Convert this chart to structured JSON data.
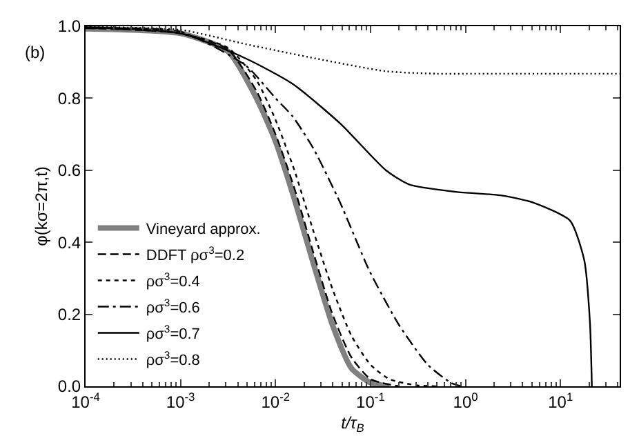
{
  "chart_data": {
    "type": "line",
    "xlabel": "t/τ$_{B}$",
    "ylabel": "φ(kσ=2π,t)",
    "annotations": [
      "(b)"
    ],
    "log": "x",
    "xlim": [
      0.0001,
      42
    ],
    "ylim": [
      0,
      1
    ],
    "xticks": [
      {
        "value": 0.0001,
        "label": "10$^{-4}$"
      },
      {
        "value": 0.001,
        "label": "10$^{-3}$"
      },
      {
        "value": 0.01,
        "label": "10$^{-2}$"
      },
      {
        "value": 0.1,
        "label": "10$^{-1}$"
      },
      {
        "value": 1,
        "label": "10$^{0}$"
      },
      {
        "value": 10,
        "label": "10$^{1}$"
      }
    ],
    "yticks": [
      {
        "value": 0,
        "label": "0.0"
      },
      0.2,
      0.4,
      0.6,
      0.8,
      {
        "value": 1,
        "label": "1.0"
      }
    ],
    "legend": "bottom left",
    "marker": "none",
    "series": [
      {
        "name": "Vineyard approx.",
        "color": "#808080",
        "line_style": "solid",
        "x": [
          0.0001,
          0.001,
          0.00316,
          0.0063,
          0.01,
          0.0158,
          0.0251,
          0.0398,
          0.0631,
          0.1,
          0.158
        ],
        "values": [
          0.993,
          0.98,
          0.93,
          0.8,
          0.68,
          0.52,
          0.34,
          0.17,
          0.05,
          0.01,
          0
        ]
      },
      {
        "name": "DDFT ρσ$^{3}$=0.2",
        "color": "#000000",
        "line_style": "dashed",
        "x": [
          0.0001,
          0.001,
          0.00316,
          0.0063,
          0.01,
          0.0158,
          0.0251,
          0.0398,
          0.0631,
          0.1,
          0.2
        ],
        "values": [
          0.995,
          0.98,
          0.935,
          0.82,
          0.7,
          0.55,
          0.37,
          0.2,
          0.08,
          0.02,
          0
        ]
      },
      {
        "name": "ρσ$^{3}$=0.4",
        "color": "#000000",
        "line_style": "shortdash",
        "x": [
          0.0001,
          0.001,
          0.00316,
          0.0063,
          0.01,
          0.0158,
          0.0251,
          0.0398,
          0.0631,
          0.1,
          0.158,
          0.3,
          0.5
        ],
        "values": [
          0.996,
          0.98,
          0.94,
          0.85,
          0.74,
          0.6,
          0.43,
          0.27,
          0.14,
          0.06,
          0.02,
          0.003,
          0
        ]
      },
      {
        "name": "ρσ$^{3}$=0.6",
        "color": "#000000",
        "line_style": "dashdot",
        "x": [
          0.0001,
          0.001,
          0.0049,
          0.01,
          0.0151,
          0.0251,
          0.0479,
          0.0977,
          0.2,
          0.4,
          0.7,
          0.9
        ],
        "values": [
          0.994,
          0.985,
          0.89,
          0.8,
          0.75,
          0.66,
          0.51,
          0.32,
          0.17,
          0.06,
          0.01,
          0
        ]
      },
      {
        "name": "ρσ$^{3}$=0.7",
        "color": "#000000",
        "line_style": "solid",
        "x": [
          0.0001,
          0.001,
          0.0049,
          0.0151,
          0.0479,
          0.145,
          0.257,
          0.794,
          2.4,
          5.2,
          12.6,
          17.8,
          20.4,
          21.4
        ],
        "values": [
          0.997,
          0.98,
          0.91,
          0.84,
          0.73,
          0.6,
          0.56,
          0.54,
          0.53,
          0.51,
          0.46,
          0.35,
          0.18,
          0
        ]
      },
      {
        "name": "ρσ$^{3}$=0.8",
        "color": "#000000",
        "line_style": "dotted",
        "x": [
          0.0001,
          0.001,
          0.0049,
          0.0269,
          0.145,
          0.5,
          1,
          10,
          42
        ],
        "values": [
          0.998,
          0.99,
          0.95,
          0.91,
          0.875,
          0.868,
          0.868,
          0.868,
          0.868
        ]
      }
    ]
  }
}
